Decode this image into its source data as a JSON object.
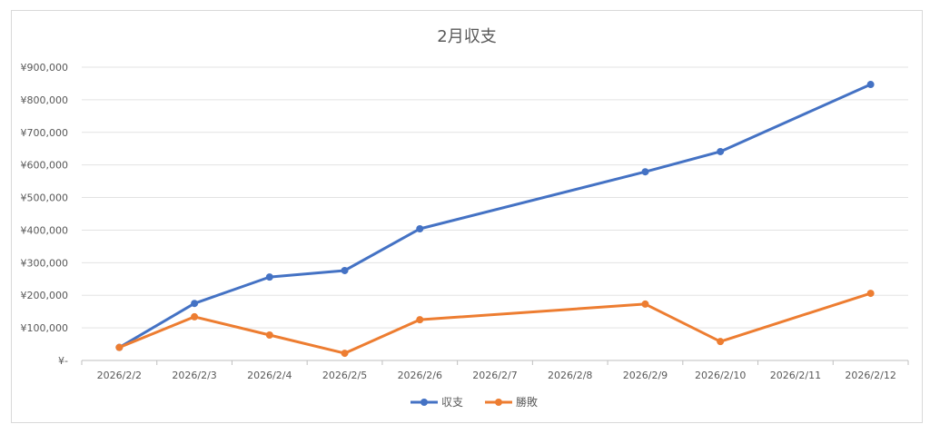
{
  "chart_data": {
    "type": "line",
    "title": "2月収支",
    "categories": [
      "2026/2/2",
      "2026/2/3",
      "2026/2/4",
      "2026/2/5",
      "2026/2/6",
      "2026/2/7",
      "2026/2/8",
      "2026/2/9",
      "2026/2/10",
      "2026/2/11",
      "2026/2/12"
    ],
    "series": [
      {
        "name": "収支",
        "color": "#4472C4",
        "values": [
          40000,
          175000,
          256000,
          276000,
          404000,
          null,
          null,
          579000,
          641000,
          null,
          847000
        ]
      },
      {
        "name": "勝敗",
        "color": "#ED7D31",
        "values": [
          40000,
          134000,
          78000,
          22000,
          125000,
          null,
          null,
          173000,
          58000,
          null,
          206000
        ]
      }
    ],
    "ylim": [
      0,
      900000
    ],
    "yticks": [
      0,
      100000,
      200000,
      300000,
      400000,
      500000,
      600000,
      700000,
      800000,
      900000
    ],
    "ytick_labels": [
      "¥-",
      "¥100,000",
      "¥200,000",
      "¥300,000",
      "¥400,000",
      "¥500,000",
      "¥600,000",
      "¥700,000",
      "¥800,000",
      "¥900,000"
    ],
    "xlabel": "",
    "ylabel": "",
    "grid": true,
    "legend_position": "bottom",
    "gaps": "connected"
  }
}
